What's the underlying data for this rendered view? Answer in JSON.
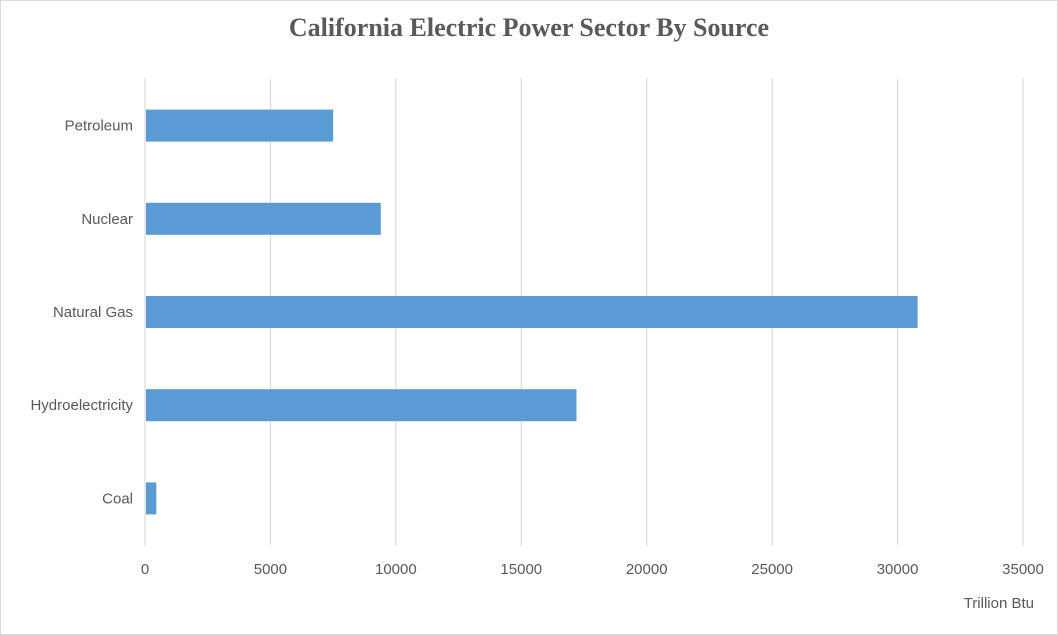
{
  "chart_data": {
    "type": "bar",
    "orientation": "horizontal",
    "title": "California Electric Power Sector By Source",
    "xlabel": "Trillion Btu",
    "ylabel": "",
    "categories": [
      "Petroleum",
      "Nuclear",
      "Natural Gas",
      "Hydroelectricity",
      "Coal"
    ],
    "values": [
      7500,
      9400,
      30800,
      17200,
      450
    ],
    "xlim": [
      0,
      35000
    ],
    "xticks": [
      "0",
      "5000",
      "10000",
      "15000",
      "20000",
      "25000",
      "30000",
      "35000"
    ],
    "grid": "vertical",
    "legend": "none",
    "bar_color": "#5b9bd5",
    "grid_color": "#d9d9d9"
  }
}
